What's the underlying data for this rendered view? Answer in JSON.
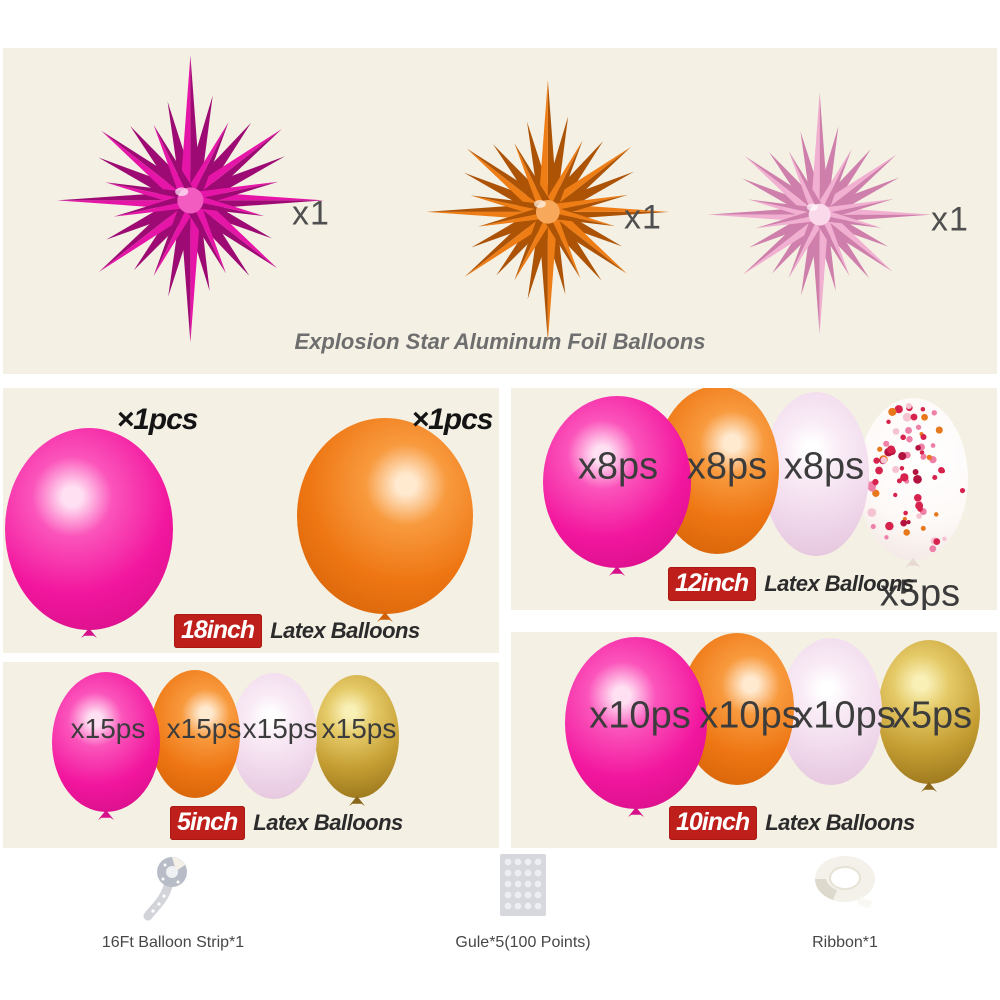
{
  "foil_section": {
    "caption": "Explosion Star Aluminum Foil Balloons",
    "stars": [
      {
        "name": "magenta-star",
        "qty": "x1"
      },
      {
        "name": "orange-star",
        "qty": "x1"
      },
      {
        "name": "pink-star",
        "qty": "x1"
      }
    ]
  },
  "latex_sections": [
    {
      "size": "18inch",
      "suffix": "Latex Balloons",
      "balloons": [
        {
          "color": "hot-pink",
          "qty": "×1pcs"
        },
        {
          "color": "orange",
          "qty": "×1pcs"
        }
      ]
    },
    {
      "size": "12inch",
      "suffix": "Latex Balloons",
      "balloons": [
        {
          "color": "hot-pink",
          "qty": "x8ps"
        },
        {
          "color": "orange",
          "qty": "x8ps"
        },
        {
          "color": "light-pink",
          "qty": "x8ps"
        },
        {
          "color": "confetti",
          "qty": "x5ps"
        }
      ]
    },
    {
      "size": "5inch",
      "suffix": "Latex Balloons",
      "balloons": [
        {
          "color": "hot-pink",
          "qty": "x15ps"
        },
        {
          "color": "orange",
          "qty": "x15ps"
        },
        {
          "color": "light-pink",
          "qty": "x15ps"
        },
        {
          "color": "gold",
          "qty": "x15ps"
        }
      ]
    },
    {
      "size": "10inch",
      "suffix": "Latex Balloons",
      "balloons": [
        {
          "color": "hot-pink",
          "qty": "x10ps"
        },
        {
          "color": "orange",
          "qty": "x10ps"
        },
        {
          "color": "light-pink",
          "qty": "x10ps"
        },
        {
          "color": "gold",
          "qty": "x5ps"
        }
      ]
    }
  ],
  "accessories": [
    {
      "label": "16Ft Balloon Strip*1"
    },
    {
      "label": "Gule*5(100 Points)"
    },
    {
      "label": "Ribbon*1"
    }
  ],
  "colors": {
    "page_bg": "#ffffff",
    "panel_bg": "#f4f0e4",
    "badge_red": "#bf1f1a",
    "badge_text": "#ffffff",
    "qty_label": "#3c3c3c",
    "x1_label": "#4f4f4f",
    "caption_gray": "#6e6e6e",
    "stars": {
      "magenta-star": {
        "main": "#e515a7",
        "dark": "#9d0a73",
        "mid": "#f25cc1"
      },
      "orange-star": {
        "main": "#ee7d15",
        "dark": "#ad5306",
        "mid": "#f8a85a"
      },
      "pink-star": {
        "main": "#f1b0d1",
        "dark": "#cf7fab",
        "mid": "#fad9ea"
      }
    },
    "balloons": {
      "hot-pink": {
        "hi": "#ffdff2",
        "mid": "#fb54bb",
        "base": "#f2169e",
        "dark": "#cf0d84",
        "knot": "#d5108a"
      },
      "orange": {
        "hi": "#ffe9cf",
        "mid": "#f89a3e",
        "base": "#ee7512",
        "dark": "#ce5f07",
        "knot": "#cf6008"
      },
      "light-pink": {
        "hi": "#ffffff",
        "mid": "#f9ebf6",
        "base": "#f0d8eb",
        "dark": "#e2c2da",
        "knot": "#e4c6dc"
      },
      "gold": {
        "hi": "#f9f0b6",
        "mid": "#e5ca68",
        "base": "#c49d32",
        "dark": "#8f6c16",
        "knot": "#8a671a"
      },
      "confetti": {
        "base": "#fdf9f7",
        "edge": "#f0e2de",
        "knot": "#e8d9d4",
        "dots": [
          "#d6224c",
          "#e8781c",
          "#ee7fa6",
          "#f5c3d2",
          "#b3123e"
        ]
      }
    }
  }
}
